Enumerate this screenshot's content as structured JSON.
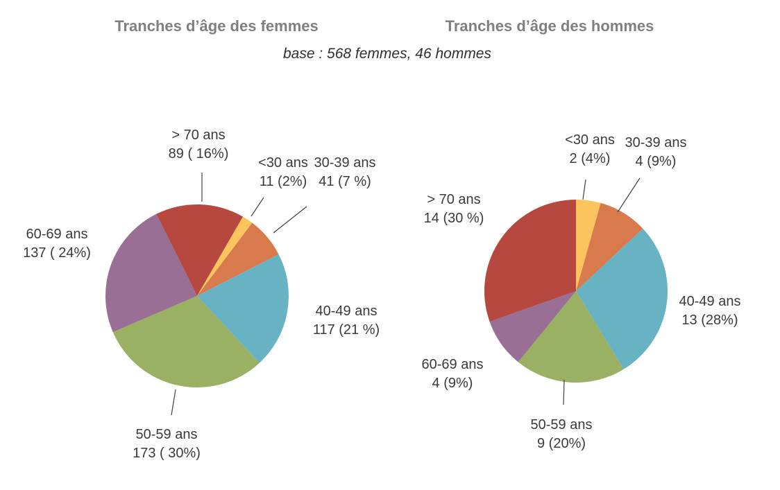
{
  "titles": {
    "left": "Tranches d’âge des femmes",
    "right": "Tranches d’âge des hommes"
  },
  "subtitle": "base : 568 femmes, 46 hommes",
  "palette": {
    "under30": "#fbc45d",
    "30-39": "#d87a4b",
    "40-49": "#67b3c3",
    "50-59": "#9ab063",
    "60-69": "#996f95",
    "over70": "#b7483f",
    "title_gray": "#7f7f7f",
    "label_gray": "#3a3a3a"
  },
  "chart_data": [
    {
      "type": "pie",
      "title": "Tranches d’âge des femmes",
      "legend_position": "none",
      "start_angle_deg": 30,
      "slices": [
        {
          "category": "<30 ans",
          "value": 11,
          "percent": 2,
          "percent_label": "11 (2%)",
          "color": "#fbc45d"
        },
        {
          "category": "30-39 ans",
          "value": 41,
          "percent": 7,
          "percent_label": "41 (7 %)",
          "color": "#d87a4b"
        },
        {
          "category": "40-49 ans",
          "value": 117,
          "percent": 21,
          "percent_label": "117 (21 %)",
          "color": "#67b3c3"
        },
        {
          "category": "50-59 ans",
          "value": 173,
          "percent": 30,
          "percent_label": "173 ( 30%)",
          "color": "#9ab063"
        },
        {
          "category": "60-69 ans",
          "value": 137,
          "percent": 24,
          "percent_label": "137 ( 24%)",
          "color": "#996f95"
        },
        {
          "category": "> 70 ans",
          "value": 89,
          "percent": 16,
          "percent_label": "89 ( 16%)",
          "color": "#b7483f"
        }
      ]
    },
    {
      "type": "pie",
      "title": "Tranches d’âge des hommes",
      "legend_position": "none",
      "start_angle_deg": 0,
      "slices": [
        {
          "category": "<30 ans",
          "value": 2,
          "percent": 4,
          "percent_label": "2 (4%)",
          "color": "#fbc45d"
        },
        {
          "category": "30-39 ans",
          "value": 4,
          "percent": 9,
          "percent_label": "4 (9%)",
          "color": "#d87a4b"
        },
        {
          "category": "40-49 ans",
          "value": 13,
          "percent": 28,
          "percent_label": "13 (28%)",
          "color": "#67b3c3"
        },
        {
          "category": "50-59 ans",
          "value": 9,
          "percent": 20,
          "percent_label": "9 (20%)",
          "color": "#9ab063"
        },
        {
          "category": "60-69 ans",
          "value": 4,
          "percent": 9,
          "percent_label": "4 (9%)",
          "color": "#996f95"
        },
        {
          "category": "> 70 ans",
          "value": 14,
          "percent": 30,
          "percent_label": "14 (30 %)",
          "color": "#b7483f"
        }
      ]
    }
  ]
}
